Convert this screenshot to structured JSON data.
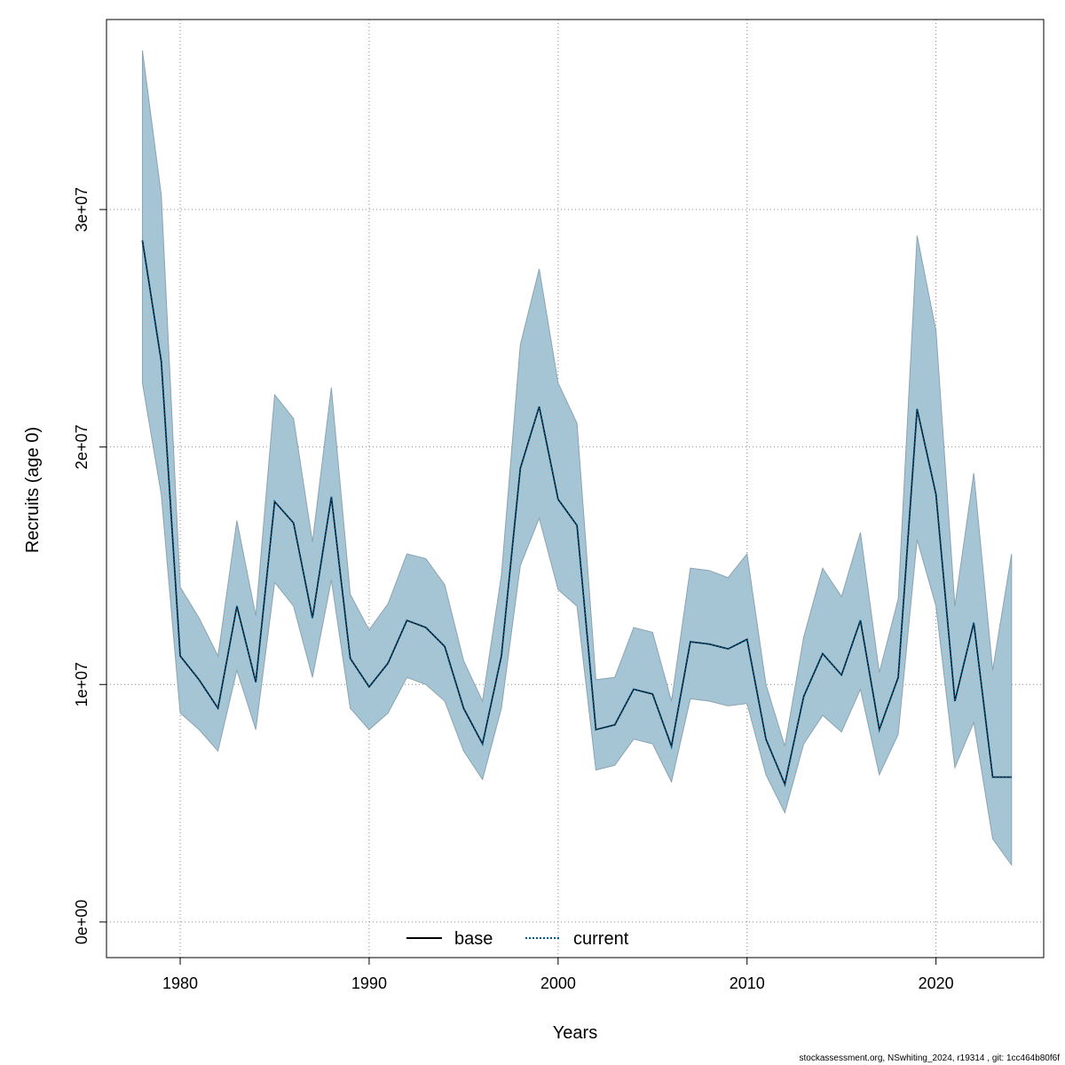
{
  "chart_data": {
    "type": "line",
    "xlabel": "Years",
    "ylabel": "Recruits (age 0)",
    "xlim": [
      1976.1,
      2025.7
    ],
    "ylim": [
      -1500000,
      38000000
    ],
    "x_ticks": [
      1980,
      1990,
      2000,
      2010,
      2020
    ],
    "y_ticks": [
      0,
      10000000,
      20000000,
      30000000
    ],
    "y_tick_labels": [
      "0e+00",
      "1e+07",
      "2e+07",
      "3e+07"
    ],
    "grid": true,
    "legend_position": "bottom-center",
    "x": [
      1978,
      1979,
      1980,
      1981,
      1982,
      1983,
      1984,
      1985,
      1986,
      1987,
      1988,
      1989,
      1990,
      1991,
      1992,
      1993,
      1994,
      1995,
      1996,
      1997,
      1998,
      1999,
      2000,
      2001,
      2002,
      2003,
      2004,
      2005,
      2006,
      2007,
      2008,
      2009,
      2010,
      2011,
      2012,
      2013,
      2014,
      2015,
      2016,
      2017,
      2018,
      2019,
      2020,
      2021,
      2022,
      2023,
      2024
    ],
    "series": [
      {
        "name": "base",
        "color": "#000000",
        "style": "solid",
        "values": [
          28700000,
          23600000,
          11200000,
          10200000,
          9000000,
          13300000,
          10100000,
          17700000,
          16800000,
          12800000,
          17900000,
          11100000,
          9900000,
          10900000,
          12700000,
          12400000,
          11600000,
          9000000,
          7500000,
          11200000,
          19100000,
          21700000,
          17800000,
          16700000,
          8100000,
          8300000,
          9800000,
          9600000,
          7400000,
          11800000,
          11700000,
          11500000,
          11900000,
          7700000,
          5800000,
          9500000,
          11300000,
          10400000,
          12700000,
          8100000,
          10300000,
          21600000,
          18000000,
          9300000,
          12600000,
          6100000,
          6100000
        ]
      },
      {
        "name": "current",
        "color": "#005a8c",
        "style": "dotted",
        "values": [
          28700000,
          23600000,
          11200000,
          10200000,
          9000000,
          13300000,
          10100000,
          17700000,
          16800000,
          12800000,
          17900000,
          11100000,
          9900000,
          10900000,
          12700000,
          12400000,
          11600000,
          9000000,
          7500000,
          11200000,
          19100000,
          21700000,
          17800000,
          16700000,
          8100000,
          8300000,
          9800000,
          9600000,
          7400000,
          11800000,
          11700000,
          11500000,
          11900000,
          7700000,
          5800000,
          9500000,
          11300000,
          10400000,
          12700000,
          8100000,
          10300000,
          21600000,
          18000000,
          9300000,
          12600000,
          6100000,
          6100000
        ]
      }
    ],
    "interval": {
      "color": "#a5c4d4",
      "upper": [
        36700000,
        30600000,
        14100000,
        12800000,
        11200000,
        16900000,
        12900000,
        22200000,
        21200000,
        16000000,
        22500000,
        13800000,
        12300000,
        13400000,
        15500000,
        15300000,
        14200000,
        11000000,
        9300000,
        14600000,
        24300000,
        27500000,
        22700000,
        21000000,
        10200000,
        10300000,
        12400000,
        12200000,
        9300000,
        14900000,
        14800000,
        14500000,
        15500000,
        10000000,
        7400000,
        12000000,
        14900000,
        13700000,
        16400000,
        10500000,
        13600000,
        28900000,
        24900000,
        13300000,
        18900000,
        10600000,
        15500000
      ],
      "lower": [
        22700000,
        18000000,
        8800000,
        8100000,
        7200000,
        10600000,
        8100000,
        14300000,
        13300000,
        10300000,
        14400000,
        9000000,
        8100000,
        8800000,
        10300000,
        10000000,
        9300000,
        7200000,
        6000000,
        9000000,
        15000000,
        17000000,
        14000000,
        13300000,
        6400000,
        6600000,
        7700000,
        7500000,
        5900000,
        9400000,
        9300000,
        9100000,
        9200000,
        6200000,
        4600000,
        7500000,
        8700000,
        8000000,
        9800000,
        6200000,
        7900000,
        16100000,
        13300000,
        6500000,
        8400000,
        3500000,
        2400000
      ]
    }
  },
  "footer": "stockassessment.org, NSwhiting_2024, r19314 , git: 1cc464b80f6f"
}
